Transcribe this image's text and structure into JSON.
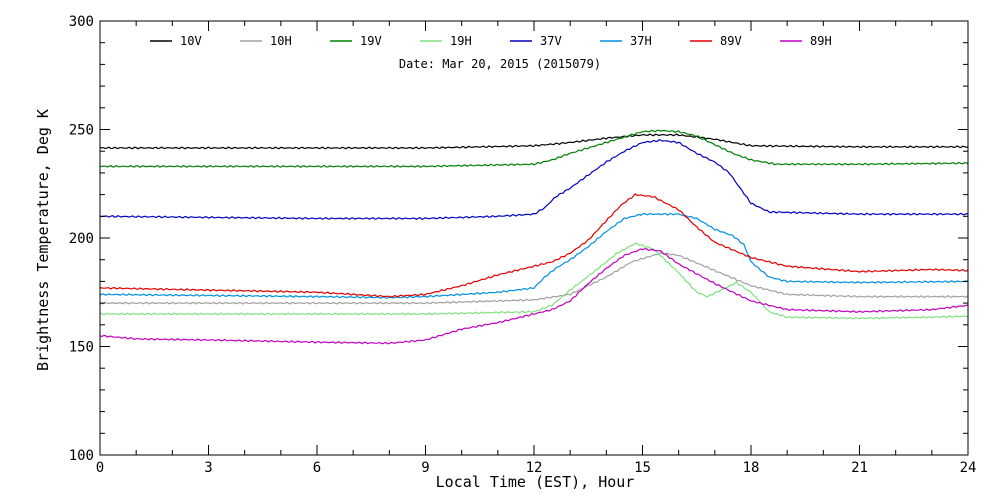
{
  "chart_data": {
    "type": "line",
    "title": "",
    "subtitle": "Date: Mar 20, 2015 (2015079)",
    "xlabel": "Local Time (EST), Hour",
    "ylabel": "Brightness Temperature, Deg K",
    "xlim": [
      0,
      24
    ],
    "ylim": [
      100,
      300
    ],
    "xticks": [
      0,
      3,
      6,
      9,
      12,
      15,
      18,
      21,
      24
    ],
    "yticks": [
      100,
      150,
      200,
      250,
      300
    ],
    "x_tick_labels": [
      "0",
      "3",
      "6",
      "9",
      "12",
      "15",
      "18",
      "21",
      "24"
    ],
    "y_tick_labels": [
      "100",
      "150",
      "200",
      "250",
      "300"
    ],
    "grid": false,
    "legend_position": "top",
    "series": [
      {
        "name": "10V",
        "color": "#000000",
        "points": [
          [
            0,
            241.5
          ],
          [
            3,
            241.5
          ],
          [
            6,
            241.5
          ],
          [
            9,
            241.5
          ],
          [
            12,
            242.5
          ],
          [
            13,
            244
          ],
          [
            14,
            246
          ],
          [
            15,
            247.5
          ],
          [
            16,
            247.5
          ],
          [
            17,
            245.5
          ],
          [
            17.5,
            244
          ],
          [
            18,
            242.5
          ],
          [
            21,
            242
          ],
          [
            24,
            242
          ]
        ]
      },
      {
        "name": "10H",
        "color": "#a0a0a0",
        "points": [
          [
            0,
            170
          ],
          [
            3,
            170
          ],
          [
            6,
            170
          ],
          [
            9,
            170
          ],
          [
            12,
            171.5
          ],
          [
            13,
            174
          ],
          [
            14,
            182
          ],
          [
            14.7,
            189
          ],
          [
            15.5,
            193
          ],
          [
            16,
            192
          ],
          [
            17,
            185
          ],
          [
            18,
            178
          ],
          [
            19,
            174
          ],
          [
            21,
            173
          ],
          [
            24,
            173
          ]
        ]
      },
      {
        "name": "19V",
        "color": "#008000",
        "points": [
          [
            0,
            233
          ],
          [
            3,
            233
          ],
          [
            6,
            233
          ],
          [
            9,
            233
          ],
          [
            12,
            234
          ],
          [
            12.5,
            236
          ],
          [
            13,
            239
          ],
          [
            14,
            244
          ],
          [
            15,
            249
          ],
          [
            15.5,
            249.5
          ],
          [
            16,
            249
          ],
          [
            16.5,
            247
          ],
          [
            17,
            243
          ],
          [
            17.5,
            239
          ],
          [
            18,
            236
          ],
          [
            18.7,
            234
          ],
          [
            21,
            234
          ],
          [
            24,
            234.5
          ]
        ]
      },
      {
        "name": "19H",
        "color": "#80e080",
        "points": [
          [
            0,
            165
          ],
          [
            3,
            165
          ],
          [
            6,
            165
          ],
          [
            9,
            165
          ],
          [
            12,
            166
          ],
          [
            12.5,
            169
          ],
          [
            13,
            176
          ],
          [
            13.7,
            185
          ],
          [
            14.3,
            193
          ],
          [
            14.8,
            197.5
          ],
          [
            15.3,
            195
          ],
          [
            16,
            184
          ],
          [
            16.5,
            175
          ],
          [
            16.8,
            173
          ],
          [
            17.3,
            177
          ],
          [
            17.6,
            179.5
          ],
          [
            18,
            175
          ],
          [
            18.5,
            166
          ],
          [
            19,
            163.5
          ],
          [
            21,
            163
          ],
          [
            23,
            163.5
          ],
          [
            24,
            164
          ]
        ]
      },
      {
        "name": "37V",
        "color": "#0000c0",
        "points": [
          [
            0,
            210
          ],
          [
            3,
            209.5
          ],
          [
            6,
            209
          ],
          [
            9,
            209
          ],
          [
            11,
            210
          ],
          [
            12,
            211
          ],
          [
            12.3,
            214
          ],
          [
            12.6,
            219
          ],
          [
            13,
            223
          ],
          [
            13.5,
            229
          ],
          [
            14,
            235
          ],
          [
            14.5,
            240
          ],
          [
            15,
            244
          ],
          [
            15.5,
            245
          ],
          [
            16,
            244
          ],
          [
            16.5,
            239
          ],
          [
            17,
            235
          ],
          [
            17.4,
            230
          ],
          [
            17.7,
            223
          ],
          [
            18,
            216
          ],
          [
            18.5,
            212
          ],
          [
            21,
            211
          ],
          [
            24,
            211
          ]
        ]
      },
      {
        "name": "37H",
        "color": "#0090e0",
        "points": [
          [
            0,
            174
          ],
          [
            3,
            173.5
          ],
          [
            6,
            173
          ],
          [
            8,
            172.5
          ],
          [
            9,
            173
          ],
          [
            11,
            175
          ],
          [
            12,
            177
          ],
          [
            12.3,
            182
          ],
          [
            12.6,
            186
          ],
          [
            13,
            190
          ],
          [
            13.5,
            196
          ],
          [
            14,
            203
          ],
          [
            14.5,
            209
          ],
          [
            15,
            211
          ],
          [
            16,
            211
          ],
          [
            16.5,
            209
          ],
          [
            17,
            204
          ],
          [
            17.5,
            201
          ],
          [
            17.8,
            197
          ],
          [
            18,
            189
          ],
          [
            18.5,
            182
          ],
          [
            19,
            180
          ],
          [
            21,
            179.5
          ],
          [
            24,
            180
          ]
        ]
      },
      {
        "name": "89V",
        "color": "#e00000",
        "points": [
          [
            0,
            177
          ],
          [
            3,
            176
          ],
          [
            6,
            175
          ],
          [
            8,
            173
          ],
          [
            9,
            174
          ],
          [
            10,
            178
          ],
          [
            11,
            183
          ],
          [
            12,
            187
          ],
          [
            12.5,
            189
          ],
          [
            13,
            193
          ],
          [
            13.5,
            199
          ],
          [
            14,
            208
          ],
          [
            14.4,
            215
          ],
          [
            14.8,
            220
          ],
          [
            15.3,
            219
          ],
          [
            16,
            213
          ],
          [
            16.5,
            205
          ],
          [
            17,
            198
          ],
          [
            18,
            191
          ],
          [
            19,
            187
          ],
          [
            21,
            184.5
          ],
          [
            23,
            185.5
          ],
          [
            24,
            185
          ]
        ]
      },
      {
        "name": "89H",
        "color": "#c000c0",
        "points": [
          [
            0,
            155
          ],
          [
            1,
            153.5
          ],
          [
            3,
            153
          ],
          [
            6,
            152
          ],
          [
            8,
            151.5
          ],
          [
            9,
            153
          ],
          [
            10,
            158
          ],
          [
            11,
            161
          ],
          [
            12,
            165
          ],
          [
            12.5,
            167
          ],
          [
            13,
            171
          ],
          [
            13.5,
            179
          ],
          [
            14,
            186
          ],
          [
            14.5,
            192
          ],
          [
            15,
            195
          ],
          [
            15.5,
            194
          ],
          [
            16,
            188
          ],
          [
            17,
            179
          ],
          [
            18,
            171
          ],
          [
            19,
            167
          ],
          [
            21,
            166
          ],
          [
            23,
            167
          ],
          [
            24,
            169
          ]
        ]
      }
    ]
  }
}
